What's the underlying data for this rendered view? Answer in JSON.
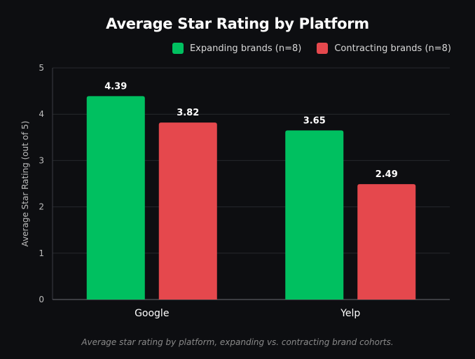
{
  "chart_data": {
    "type": "bar",
    "title": "Average Star Rating by Platform",
    "caption": "Average star rating by platform, expanding vs. contracting brand cohorts.",
    "xlabel": "",
    "ylabel": "Average Star Rating (out of 5)",
    "ylim": [
      0,
      5
    ],
    "yticks": [
      "0",
      "1",
      "2",
      "3",
      "4",
      "5"
    ],
    "grid": true,
    "legend_position": "top-right",
    "categories": [
      "Google",
      "Yelp"
    ],
    "series": [
      {
        "name": "Expanding brands (n=8)",
        "color": "#00c060",
        "values": [
          4.39,
          3.65
        ],
        "labels": [
          "4.39",
          "3.65"
        ]
      },
      {
        "name": "Contracting brands (n=8)",
        "color": "#e5484d",
        "values": [
          3.82,
          2.49
        ],
        "labels": [
          "3.82",
          "2.49"
        ]
      }
    ]
  }
}
